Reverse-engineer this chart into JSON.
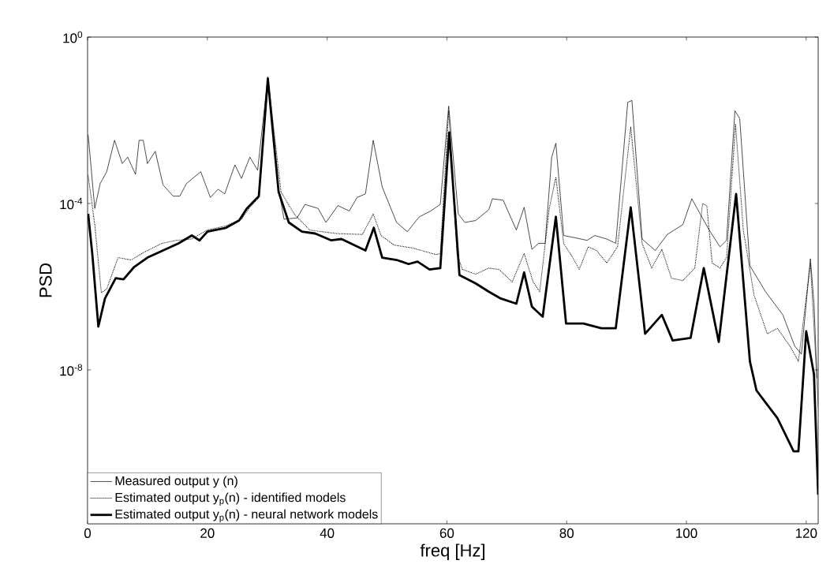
{
  "chart_data": {
    "type": "line",
    "xlabel": "freq [Hz]",
    "ylabel": "PSD",
    "log": "y",
    "legend": "bottom left",
    "xlim": [
      0,
      122
    ],
    "xticks": [
      0,
      20,
      40,
      60,
      80,
      100,
      120
    ],
    "ylim": [
      2e-12,
      1
    ],
    "yticks": [
      {
        "value": 1,
        "label": "10$^{0}$"
      },
      {
        "value": 0.0001,
        "label": "10$^{-4}$"
      },
      {
        "value": 1e-08,
        "label": "10$^{-8}$"
      }
    ],
    "series": [
      {
        "name": "Measured output y (n)",
        "color": "#000000",
        "line_style": "solid",
        "x": [
          0.1,
          1.2,
          2.1,
          3.2,
          4.5,
          5.8,
          6.7,
          8.0,
          8.6,
          9.3,
          10.0,
          11.3,
          12.6,
          14.3,
          15.4,
          16.5,
          18.9,
          20.5,
          21.8,
          22.9,
          24.6,
          25.7,
          27.1,
          28.4,
          30.1,
          31.9,
          32.8,
          35.0,
          36.3,
          38.5,
          39.8,
          41.8,
          43.7,
          45.0,
          46.4,
          47.7,
          49.2,
          51.6,
          53.4,
          55.4,
          57.3,
          58.9,
          60.3,
          61.9,
          63.0,
          64.8,
          67.0,
          67.6,
          69.4,
          71.6,
          72.9,
          74.2,
          75.3,
          76.4,
          77.5,
          78.2,
          79.5,
          81.4,
          83.4,
          84.7,
          86.7,
          88.2,
          90.2,
          90.9,
          92.6,
          94.8,
          96.8,
          99.4,
          100.9,
          102.3,
          103.8,
          105.6,
          106.7,
          108.1,
          108.9,
          110.6,
          113.2,
          116.1,
          118.1,
          119.2,
          120.7,
          121.3,
          121.8
        ],
        "values": [
          0.0045,
          7.6e-05,
          0.0003,
          0.00058,
          0.0033,
          0.00091,
          0.0013,
          0.0005,
          0.0033,
          0.0033,
          0.00091,
          0.0018,
          0.00028,
          0.00015,
          0.00015,
          0.0003,
          0.00058,
          0.00014,
          0.00022,
          0.00017,
          0.00085,
          0.0004,
          0.0013,
          0.00063,
          0.11,
          0.00022,
          4.2e-05,
          4.5e-05,
          9.5e-05,
          7.6e-05,
          3.5e-05,
          8.9e-05,
          6.6e-05,
          0.00014,
          0.00017,
          0.0033,
          0.00025,
          3.5e-05,
          2.1e-05,
          4.8e-05,
          6.6e-05,
          9.5e-05,
          0.022,
          5.6e-05,
          3.5e-05,
          3.9e-05,
          7.1e-05,
          0.00013,
          0.00012,
          2.3e-05,
          8.1e-05,
          7.9e-06,
          1.1e-05,
          1.1e-05,
          0.0013,
          0.0028,
          1.7e-05,
          1.5e-05,
          1.3e-05,
          1.7e-05,
          1.4e-05,
          1.1e-05,
          0.027,
          0.03,
          1.4e-05,
          7.4e-06,
          1.8e-05,
          3.1e-05,
          0.00013,
          5.6e-05,
          2.3e-05,
          9.1e-06,
          1.3e-05,
          0.017,
          0.011,
          3.2e-06,
          7.6e-07,
          2.1e-07,
          3.7e-08,
          2.4e-08,
          4.7e-06,
          4e-07,
          6.3e-09
        ]
      },
      {
        "name": "Estimated output y$_{p}$(n) - identified models",
        "color": "#000000",
        "line_style": "dotted",
        "x": [
          0.1,
          1.2,
          2.3,
          3.2,
          5.1,
          7.3,
          9.5,
          12.4,
          14.8,
          17.4,
          20.0,
          23.1,
          25.7,
          27.1,
          28.6,
          30.1,
          32.3,
          34.5,
          37.1,
          41.5,
          45.9,
          47.7,
          49.0,
          51.2,
          54.3,
          58.2,
          58.9,
          60.3,
          61.7,
          62.6,
          64.8,
          67.0,
          68.7,
          70.9,
          72.9,
          74.4,
          75.5,
          77.1,
          78.2,
          79.5,
          81.0,
          82.1,
          83.6,
          85.0,
          86.7,
          88.5,
          90.7,
          92.6,
          94.2,
          95.9,
          97.5,
          99.4,
          101.4,
          102.7,
          103.4,
          104.3,
          105.6,
          106.7,
          108.2,
          109.5,
          111.3,
          113.5,
          115.2,
          117.4,
          118.7,
          120.7,
          121.5,
          122
        ],
        "values": [
          0.00047,
          3.1e-05,
          7.1e-07,
          8.9e-07,
          5e-06,
          4.4e-06,
          6.8e-06,
          1.1e-05,
          1.3e-05,
          1.4e-05,
          2.3e-05,
          2.9e-05,
          4.2e-05,
          8.1e-05,
          0.00014,
          0.11,
          0.00019,
          5.6e-05,
          2.3e-05,
          1.9e-05,
          1.8e-05,
          5.6e-05,
          1.7e-05,
          1e-05,
          8.5e-06,
          5.9e-06,
          6.3e-06,
          0.017,
          5.9e-06,
          2.6e-06,
          2e-06,
          2.8e-06,
          2.6e-06,
          1.3e-06,
          6.3e-06,
          1.3e-06,
          7.6e-07,
          7.6e-05,
          0.00043,
          1.1e-05,
          5e-06,
          2.6e-06,
          9.1e-06,
          7.4e-06,
          3.7e-06,
          9.1e-06,
          0.0069,
          1.1e-05,
          2.8e-06,
          7.9e-06,
          1.6e-06,
          1.4e-06,
          2.8e-06,
          0.0001,
          8.9e-05,
          3.7e-06,
          2.8e-06,
          5e-06,
          0.0081,
          2.3e-05,
          6.2e-07,
          7.4e-08,
          1e-07,
          3.5e-08,
          1.6e-08,
          3.7e-06,
          3.2e-08,
          1.3e-09
        ]
      },
      {
        "name": "Estimated output y$_{p}$(n) - neural network models",
        "color": "#000000",
        "line_style": "solid",
        "x": [
          0.1,
          0.8,
          1.8,
          2.9,
          4.7,
          6.0,
          7.8,
          10.0,
          12.6,
          15.2,
          17.4,
          18.7,
          20.0,
          23.1,
          25.3,
          26.6,
          28.6,
          30.1,
          31.9,
          33.6,
          35.8,
          38.0,
          40.7,
          42.4,
          46.4,
          47.8,
          49.2,
          51.6,
          53.6,
          55.1,
          57.1,
          58.9,
          60.4,
          62.1,
          64.8,
          67.0,
          69.0,
          71.6,
          72.9,
          74.2,
          76.0,
          78.2,
          79.9,
          82.8,
          85.8,
          88.2,
          90.7,
          93.1,
          95.9,
          97.7,
          100.7,
          102.9,
          105.4,
          108.3,
          110.6,
          111.7,
          115.2,
          117.9,
          118.7,
          120.0,
          121.3,
          122
        ],
        "values": [
          5.6e-05,
          5.9e-06,
          1.1e-07,
          5.2e-07,
          1.6e-06,
          1.5e-06,
          3e-06,
          5e-06,
          7.4e-06,
          1.1e-05,
          1.7e-05,
          1.3e-05,
          2.1e-05,
          2.6e-05,
          3.9e-05,
          7.6e-05,
          0.00015,
          0.1,
          0.00019,
          3.5e-05,
          2.1e-05,
          1.9e-05,
          1.3e-05,
          1.4e-05,
          7.4e-06,
          2.6e-05,
          5e-06,
          4.4e-06,
          3.5e-06,
          4e-06,
          2.6e-06,
          2.8e-06,
          0.0051,
          1.9e-06,
          1.2e-06,
          7.6e-07,
          5.2e-07,
          3.9e-07,
          2.2e-06,
          3.3e-07,
          1.9e-07,
          4.8e-05,
          1.3e-07,
          1.3e-07,
          1e-07,
          1e-07,
          8.1e-05,
          7.4e-08,
          2.1e-07,
          5.1e-08,
          5.9e-08,
          2.8e-06,
          4.7e-08,
          0.00017,
          1.6e-08,
          3.2e-09,
          6.9e-10,
          1.1e-10,
          1.1e-10,
          8.5e-08,
          7.8e-09,
          1e-11
        ]
      }
    ]
  }
}
